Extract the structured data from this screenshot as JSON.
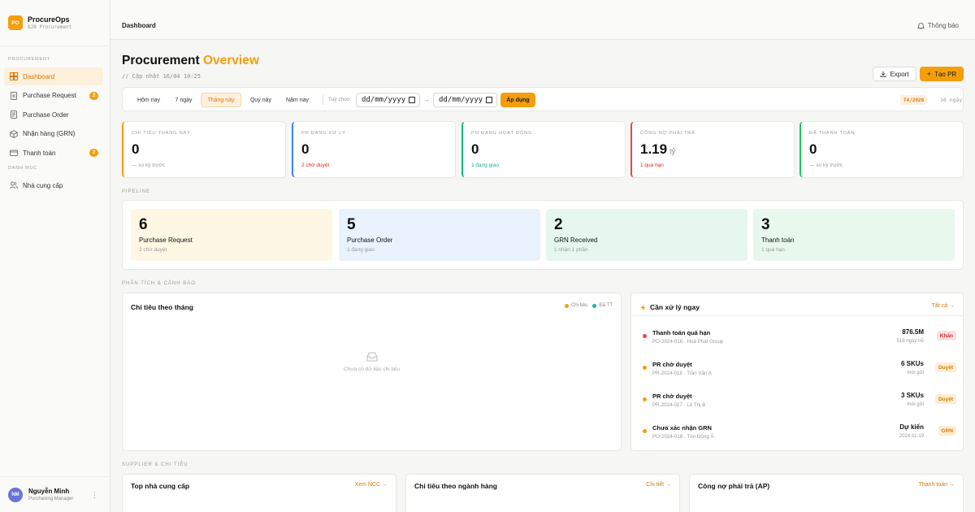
{
  "brand": {
    "logo": "PO",
    "name": "ProcureOps",
    "subtitle": "B2B Procurement"
  },
  "nav": {
    "section_procurement": "PROCUREMENT",
    "section_catalog": "DANH MỤC",
    "items": [
      {
        "label": "Dashboard",
        "icon": "dashboard-icon",
        "active": true
      },
      {
        "label": "Purchase Request",
        "icon": "document-icon",
        "badge": "2"
      },
      {
        "label": "Purchase Order",
        "icon": "order-icon"
      },
      {
        "label": "Nhận hàng (GRN)",
        "icon": "package-icon"
      },
      {
        "label": "Thanh toán",
        "icon": "card-icon",
        "badge": "2"
      }
    ],
    "catalog_items": [
      {
        "label": "Nhà cung cấp",
        "icon": "users-icon"
      }
    ]
  },
  "user": {
    "initials": "NM",
    "name": "Nguyễn Minh",
    "role": "Purchasing Manager"
  },
  "topbar": {
    "breadcrumb": "Dashboard",
    "notifications": "Thông báo"
  },
  "header": {
    "title_main": "Procurement",
    "title_accent": "Overview",
    "updated": "// Cập nhật 16/04 10:25",
    "export_label": "Export",
    "create_label": "Tạo PR"
  },
  "filters": {
    "ranges": [
      "Hôm nay",
      "7 ngày",
      "Tháng này",
      "Quý này",
      "Năm nay"
    ],
    "active": "Tháng này",
    "custom_label": "Tuỳ chọn:",
    "date_from": "dd/mm/yyyy",
    "date_to": "dd/mm/yyyy",
    "arrow": "→",
    "apply_label": "Áp dụng",
    "period_badge": "T4/2026",
    "days": "16 ngày"
  },
  "kpis": [
    {
      "label": "CHI TIÊU THÁNG NÀY",
      "value": "0",
      "unit": "",
      "sub": "— so kỳ trước",
      "accent": "#f59e0b",
      "sub_color": "#999999"
    },
    {
      "label": "PR ĐANG XỬ LÝ",
      "value": "0",
      "unit": "",
      "sub": "2 chờ duyệt",
      "accent": "#3b82f6",
      "sub_color": "#dc2626"
    },
    {
      "label": "PO ĐANG HOẠT ĐỘNG",
      "value": "0",
      "unit": "",
      "sub": "1 đang giao",
      "accent": "#10b981",
      "sub_color": "#10b981"
    },
    {
      "label": "CÔNG NỢ PHẢI TRẢ",
      "value": "1.19",
      "unit": "tỷ",
      "sub": "1 quá hạn",
      "accent": "#ef4444",
      "sub_color": "#dc2626"
    },
    {
      "label": "ĐÃ THANH TOÁN",
      "value": "0",
      "unit": "",
      "sub": "— so kỳ trước",
      "accent": "#22c55e",
      "sub_color": "#999999"
    }
  ],
  "sections": {
    "pipeline": "PIPELINE",
    "analysis": "PHÂN TÍCH & CẢNH BÁO",
    "suppliers": "SUPPLIER & CHI TIÊU"
  },
  "pipeline": [
    {
      "count": "6",
      "name": "Purchase Request",
      "sub": "2 chờ duyệt",
      "bg": "#fef7e4"
    },
    {
      "count": "5",
      "name": "Purchase Order",
      "sub": "1 đang giao",
      "bg": "#eaf2fd"
    },
    {
      "count": "2",
      "name": "GRN Received",
      "sub": "1 nhận 1 phần",
      "bg": "#e6f7f0"
    },
    {
      "count": "3",
      "name": "Thanh toán",
      "sub": "1 quá hạn",
      "bg": "#e8f8ec"
    }
  ],
  "spend_chart": {
    "title": "Chi tiêu theo tháng",
    "legend": [
      {
        "name": "Chi tiêu",
        "color": "#f59e0b"
      },
      {
        "name": "Đã TT",
        "color": "#14b8a6"
      }
    ],
    "empty_text": "Chưa có dữ liệu chi tiêu"
  },
  "actions": {
    "title": "Cần xử lý ngay",
    "see_all": "Tất cả →",
    "items": [
      {
        "title": "Thanh toán quá hạn",
        "sub": "PO-2024-016 · Hoà Phát Group",
        "value": "876.5M",
        "meta": "518 ngày trễ",
        "tag": "Khẩn",
        "dot": "#ef4444",
        "tag_bg": "#fde2e2",
        "tag_color": "#dc2626"
      },
      {
        "title": "PR chờ duyệt",
        "sub": "PR-2024-018 · Trần Văn A",
        "value": "6 SKUs",
        "meta": "mới gửi",
        "tag": "Duyệt",
        "dot": "#f59e0b",
        "tag_bg": "#fdefd4",
        "tag_color": "#d97706"
      },
      {
        "title": "PR chờ duyệt",
        "sub": "PR-2024-017 · Lê Thị B",
        "value": "3 SKUs",
        "meta": "mới gửi",
        "tag": "Duyệt",
        "dot": "#f59e0b",
        "tag_bg": "#fdefd4",
        "tag_color": "#d97706"
      },
      {
        "title": "Chưa xác nhận GRN",
        "sub": "PO-2024-018 · Tôn Đông Á",
        "value": "Dự kiến",
        "meta": "2024-11-19",
        "tag": "GRN",
        "dot": "#f59e0b",
        "tag_bg": "#fdefd4",
        "tag_color": "#d97706"
      }
    ]
  },
  "bottom_panels": [
    {
      "title": "Top nhà cung cấp",
      "link": "Xem NCC →"
    },
    {
      "title": "Chi tiêu theo ngành hàng",
      "link": "Chi tiết →"
    },
    {
      "title": "Công nợ phải trả (AP)",
      "link": "Thanh toán →"
    }
  ]
}
